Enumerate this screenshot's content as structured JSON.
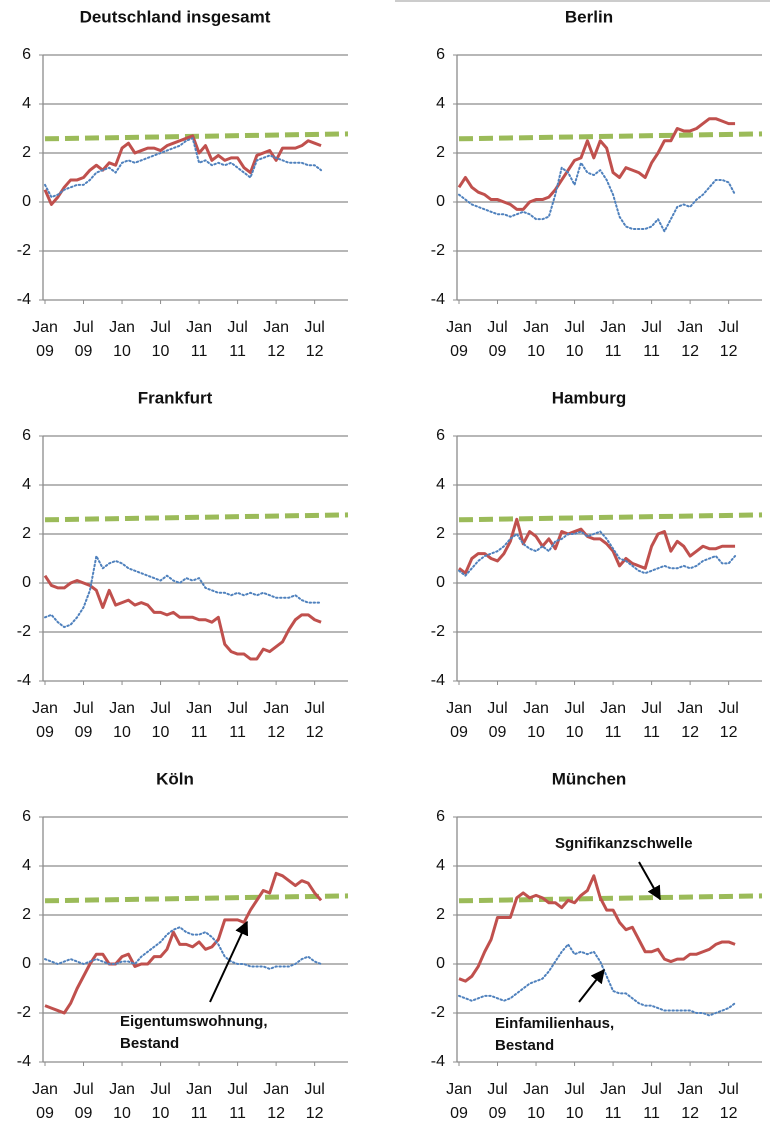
{
  "chart_data": [
    {
      "type": "line",
      "title": "Deutschland insgesamt",
      "categories": [
        "Jan 09",
        null,
        null,
        null,
        null,
        null,
        "Jul 09",
        null,
        null,
        null,
        null,
        null,
        "Jan 10",
        null,
        null,
        null,
        null,
        null,
        "Jul 10",
        null,
        null,
        null,
        null,
        null,
        "Jan 11",
        null,
        null,
        null,
        null,
        null,
        "Jul 11",
        null,
        null,
        null,
        null,
        null,
        "Jan 12",
        null,
        null,
        null,
        null,
        null,
        "Jul 12",
        null
      ],
      "ylim": [
        -4,
        6
      ],
      "yticks": [
        -4,
        -2,
        0,
        2,
        4,
        6
      ],
      "grid": true,
      "threshold": {
        "color": "#9bbb59",
        "values": [
          2.58,
          2.78
        ]
      },
      "series": [
        {
          "color": "#c0504d",
          "style": "solid",
          "values": [
            0.5,
            -0.1,
            0.2,
            0.6,
            0.9,
            0.9,
            1.0,
            1.3,
            1.5,
            1.3,
            1.6,
            1.5,
            2.2,
            2.4,
            2.0,
            2.1,
            2.2,
            2.2,
            2.1,
            2.3,
            2.4,
            2.5,
            2.6,
            2.7,
            2.0,
            2.3,
            1.7,
            1.9,
            1.7,
            1.8,
            1.8,
            1.4,
            1.2,
            1.9,
            2.0,
            2.1,
            1.7,
            2.2,
            2.2,
            2.2,
            2.3,
            2.5,
            2.4,
            2.3
          ]
        },
        {
          "color": "#4f81bd",
          "style": "dotted",
          "values": [
            0.7,
            0.2,
            0.3,
            0.5,
            0.6,
            0.7,
            0.7,
            0.9,
            1.2,
            1.3,
            1.4,
            1.2,
            1.6,
            1.7,
            1.6,
            1.7,
            1.8,
            1.9,
            2.0,
            2.1,
            2.2,
            2.3,
            2.5,
            2.6,
            1.6,
            1.7,
            1.5,
            1.6,
            1.5,
            1.6,
            1.4,
            1.2,
            1.0,
            1.7,
            1.8,
            1.9,
            1.8,
            1.7,
            1.6,
            1.6,
            1.6,
            1.5,
            1.5,
            1.3
          ]
        }
      ]
    },
    {
      "type": "line",
      "title": "Berlin",
      "categories": [
        "Jan 09",
        null,
        null,
        null,
        null,
        null,
        "Jul 09",
        null,
        null,
        null,
        null,
        null,
        "Jan 10",
        null,
        null,
        null,
        null,
        null,
        "Jul 10",
        null,
        null,
        null,
        null,
        null,
        "Jan 11",
        null,
        null,
        null,
        null,
        null,
        "Jul 11",
        null,
        null,
        null,
        null,
        null,
        "Jan 12",
        null,
        null,
        null,
        null,
        null,
        "Jul 12",
        null
      ],
      "ylim": [
        -4,
        6
      ],
      "yticks": [
        -4,
        -2,
        0,
        2,
        4,
        6
      ],
      "grid": true,
      "threshold": {
        "color": "#9bbb59",
        "values": [
          2.58,
          2.78
        ]
      },
      "series": [
        {
          "color": "#c0504d",
          "style": "solid",
          "values": [
            0.6,
            1.0,
            0.6,
            0.4,
            0.3,
            0.1,
            0.1,
            0.0,
            -0.1,
            -0.3,
            -0.3,
            0.0,
            0.1,
            0.1,
            0.2,
            0.5,
            0.9,
            1.3,
            1.7,
            1.8,
            2.5,
            1.8,
            2.5,
            2.2,
            1.2,
            1.0,
            1.4,
            1.3,
            1.2,
            1.0,
            1.6,
            2.0,
            2.5,
            2.5,
            3.0,
            2.9,
            2.9,
            3.0,
            3.2,
            3.4,
            3.4,
            3.3,
            3.2,
            3.2
          ]
        },
        {
          "color": "#4f81bd",
          "style": "dotted",
          "values": [
            0.3,
            0.1,
            -0.1,
            -0.2,
            -0.3,
            -0.4,
            -0.5,
            -0.5,
            -0.6,
            -0.5,
            -0.4,
            -0.5,
            -0.7,
            -0.7,
            -0.6,
            0.3,
            1.4,
            1.2,
            0.7,
            1.6,
            1.2,
            1.1,
            1.3,
            0.9,
            0.3,
            -0.6,
            -1.0,
            -1.1,
            -1.1,
            -1.1,
            -1.0,
            -0.7,
            -1.2,
            -0.7,
            -0.2,
            -0.1,
            -0.2,
            0.1,
            0.3,
            0.6,
            0.9,
            0.9,
            0.8,
            0.3
          ]
        }
      ]
    },
    {
      "type": "line",
      "title": "Frankfurt",
      "categories": [
        "Jan 09",
        null,
        null,
        null,
        null,
        null,
        "Jul 09",
        null,
        null,
        null,
        null,
        null,
        "Jan 10",
        null,
        null,
        null,
        null,
        null,
        "Jul 10",
        null,
        null,
        null,
        null,
        null,
        "Jan 11",
        null,
        null,
        null,
        null,
        null,
        "Jul 11",
        null,
        null,
        null,
        null,
        null,
        "Jan 12",
        null,
        null,
        null,
        null,
        null,
        "Jul 12",
        null
      ],
      "ylim": [
        -4,
        6
      ],
      "yticks": [
        -4,
        -2,
        0,
        2,
        4,
        6
      ],
      "grid": true,
      "threshold": {
        "color": "#9bbb59",
        "values": [
          2.58,
          2.78
        ]
      },
      "series": [
        {
          "color": "#c0504d",
          "style": "solid",
          "values": [
            0.3,
            -0.1,
            -0.2,
            -0.2,
            0.0,
            0.1,
            0.0,
            -0.1,
            -0.3,
            -1.0,
            -0.3,
            -0.9,
            -0.8,
            -0.7,
            -0.9,
            -0.8,
            -0.9,
            -1.2,
            -1.2,
            -1.3,
            -1.2,
            -1.4,
            -1.4,
            -1.4,
            -1.5,
            -1.5,
            -1.6,
            -1.4,
            -2.5,
            -2.8,
            -2.9,
            -2.9,
            -3.1,
            -3.1,
            -2.7,
            -2.8,
            -2.6,
            -2.4,
            -1.9,
            -1.5,
            -1.3,
            -1.3,
            -1.5,
            -1.6
          ]
        },
        {
          "color": "#4f81bd",
          "style": "dotted",
          "values": [
            -1.4,
            -1.3,
            -1.6,
            -1.8,
            -1.7,
            -1.4,
            -1.0,
            -0.3,
            1.1,
            0.6,
            0.8,
            0.9,
            0.8,
            0.6,
            0.5,
            0.4,
            0.3,
            0.2,
            0.1,
            0.3,
            0.1,
            0.0,
            0.2,
            0.1,
            0.2,
            -0.2,
            -0.3,
            -0.4,
            -0.4,
            -0.5,
            -0.4,
            -0.5,
            -0.4,
            -0.5,
            -0.4,
            -0.5,
            -0.6,
            -0.6,
            -0.6,
            -0.5,
            -0.7,
            -0.8,
            -0.8,
            -0.8
          ]
        }
      ]
    },
    {
      "type": "line",
      "title": "Hamburg",
      "categories": [
        "Jan 09",
        null,
        null,
        null,
        null,
        null,
        "Jul 09",
        null,
        null,
        null,
        null,
        null,
        "Jan 10",
        null,
        null,
        null,
        null,
        null,
        "Jul 10",
        null,
        null,
        null,
        null,
        null,
        "Jan 11",
        null,
        null,
        null,
        null,
        null,
        "Jul 11",
        null,
        null,
        null,
        null,
        null,
        "Jan 12",
        null,
        null,
        null,
        null,
        null,
        "Jul 12",
        null
      ],
      "ylim": [
        -4,
        6
      ],
      "yticks": [
        -4,
        -2,
        0,
        2,
        4,
        6
      ],
      "grid": true,
      "threshold": {
        "color": "#9bbb59",
        "values": [
          2.58,
          2.78
        ]
      },
      "series": [
        {
          "color": "#c0504d",
          "style": "solid",
          "values": [
            0.6,
            0.4,
            1.0,
            1.2,
            1.2,
            1.0,
            0.9,
            1.2,
            1.7,
            2.6,
            1.6,
            2.1,
            1.9,
            1.5,
            1.8,
            1.4,
            2.1,
            2.0,
            2.1,
            2.2,
            1.9,
            1.8,
            1.8,
            1.6,
            1.3,
            0.7,
            1.0,
            0.8,
            0.7,
            0.6,
            1.5,
            2.0,
            2.1,
            1.3,
            1.7,
            1.5,
            1.1,
            1.3,
            1.5,
            1.4,
            1.4,
            1.5,
            1.5,
            1.5
          ]
        },
        {
          "color": "#4f81bd",
          "style": "dotted",
          "values": [
            0.5,
            0.3,
            0.6,
            0.9,
            1.1,
            1.2,
            1.3,
            1.5,
            1.8,
            2.0,
            1.6,
            1.4,
            1.3,
            1.5,
            1.3,
            1.7,
            1.8,
            2.0,
            2.0,
            2.1,
            1.9,
            2.0,
            2.1,
            1.8,
            1.4,
            1.0,
            0.9,
            0.7,
            0.5,
            0.4,
            0.5,
            0.6,
            0.7,
            0.6,
            0.6,
            0.7,
            0.6,
            0.7,
            0.9,
            1.0,
            1.1,
            0.8,
            0.8,
            1.1
          ]
        }
      ]
    },
    {
      "type": "line",
      "title": "Köln",
      "categories": [
        "Jan 09",
        null,
        null,
        null,
        null,
        null,
        "Jul 09",
        null,
        null,
        null,
        null,
        null,
        "Jan 10",
        null,
        null,
        null,
        null,
        null,
        "Jul 10",
        null,
        null,
        null,
        null,
        null,
        "Jan 11",
        null,
        null,
        null,
        null,
        null,
        "Jul 11",
        null,
        null,
        null,
        null,
        null,
        "Jan 12",
        null,
        null,
        null,
        null,
        null,
        "Jul 12",
        null
      ],
      "ylim": [
        -4,
        6
      ],
      "yticks": [
        -4,
        -2,
        0,
        2,
        4,
        6
      ],
      "grid": true,
      "threshold": {
        "color": "#9bbb59",
        "values": [
          2.58,
          2.78
        ]
      },
      "series": [
        {
          "color": "#c0504d",
          "style": "solid",
          "values": [
            -1.7,
            -1.8,
            -1.9,
            -2.0,
            -1.6,
            -1.0,
            -0.5,
            0.0,
            0.4,
            0.4,
            0.0,
            0.0,
            0.3,
            0.4,
            -0.1,
            0.0,
            0.0,
            0.3,
            0.3,
            0.6,
            1.3,
            0.8,
            0.8,
            0.7,
            0.9,
            0.6,
            0.7,
            1.0,
            1.8,
            1.8,
            1.8,
            1.7,
            2.2,
            2.6,
            3.0,
            2.9,
            3.7,
            3.6,
            3.4,
            3.2,
            3.4,
            3.3,
            2.9,
            2.6
          ]
        },
        {
          "color": "#4f81bd",
          "style": "dotted",
          "values": [
            0.2,
            0.1,
            0.0,
            0.1,
            0.2,
            0.1,
            0.0,
            0.1,
            0.2,
            0.1,
            0.0,
            0.0,
            0.1,
            0.1,
            0.0,
            0.3,
            0.5,
            0.7,
            0.9,
            1.2,
            1.4,
            1.5,
            1.3,
            1.2,
            1.2,
            1.3,
            1.1,
            0.8,
            0.3,
            0.1,
            0.0,
            0.0,
            -0.1,
            -0.1,
            -0.1,
            -0.2,
            -0.1,
            -0.1,
            -0.1,
            0.0,
            0.2,
            0.3,
            0.1,
            0.0
          ]
        }
      ],
      "annotations": [
        {
          "text": [
            "Eigentumswohnung,",
            "Bestand"
          ]
        }
      ]
    },
    {
      "type": "line",
      "title": "München",
      "categories": [
        "Jan 09",
        null,
        null,
        null,
        null,
        null,
        "Jul 09",
        null,
        null,
        null,
        null,
        null,
        "Jan 10",
        null,
        null,
        null,
        null,
        null,
        "Jul 10",
        null,
        null,
        null,
        null,
        null,
        "Jan 11",
        null,
        null,
        null,
        null,
        null,
        "Jul 11",
        null,
        null,
        null,
        null,
        null,
        "Jan 12",
        null,
        null,
        null,
        null,
        null,
        "Jul 12",
        null
      ],
      "ylim": [
        -4,
        6
      ],
      "yticks": [
        -4,
        -2,
        0,
        2,
        4,
        6
      ],
      "grid": true,
      "threshold": {
        "color": "#9bbb59",
        "values": [
          2.58,
          2.78
        ]
      },
      "series": [
        {
          "color": "#c0504d",
          "style": "solid",
          "values": [
            -0.6,
            -0.7,
            -0.5,
            -0.1,
            0.5,
            1.0,
            1.9,
            1.9,
            1.9,
            2.7,
            2.9,
            2.7,
            2.8,
            2.7,
            2.5,
            2.5,
            2.3,
            2.6,
            2.5,
            2.8,
            3.0,
            3.6,
            2.7,
            2.2,
            2.2,
            1.7,
            1.4,
            1.5,
            1.0,
            0.5,
            0.5,
            0.6,
            0.2,
            0.1,
            0.2,
            0.2,
            0.4,
            0.4,
            0.5,
            0.6,
            0.8,
            0.9,
            0.9,
            0.8
          ]
        },
        {
          "color": "#4f81bd",
          "style": "dotted",
          "values": [
            -1.3,
            -1.4,
            -1.5,
            -1.4,
            -1.3,
            -1.3,
            -1.4,
            -1.5,
            -1.4,
            -1.2,
            -1.0,
            -0.8,
            -0.7,
            -0.6,
            -0.3,
            0.1,
            0.5,
            0.8,
            0.4,
            0.5,
            0.4,
            0.5,
            0.1,
            -0.5,
            -1.1,
            -1.2,
            -1.2,
            -1.4,
            -1.6,
            -1.7,
            -1.7,
            -1.8,
            -1.9,
            -1.9,
            -1.9,
            -1.9,
            -1.9,
            -2.0,
            -2.0,
            -2.1,
            -2.0,
            -1.9,
            -1.8,
            -1.6
          ]
        }
      ],
      "annotations": [
        {
          "text": [
            "Sgnifikanzschwelle"
          ]
        },
        {
          "text": [
            "Einfamilienhaus,",
            "Bestand"
          ]
        }
      ]
    }
  ]
}
